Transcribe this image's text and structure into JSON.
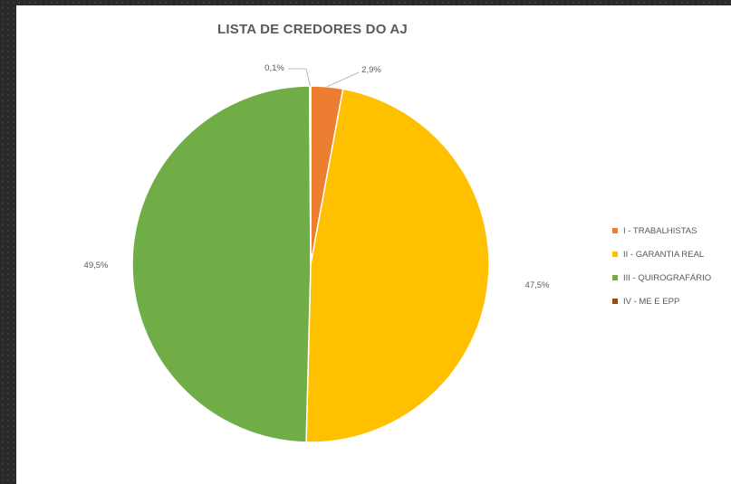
{
  "chart_data": {
    "type": "pie",
    "title": "LISTA DE CREDORES DO AJ",
    "categories": [
      "I - TRABALHISTAS",
      "II - GARANTIA REAL",
      "III - QUIROGRAFÁRIO",
      "IV - ME E EPP"
    ],
    "values": [
      2.9,
      47.5,
      49.5,
      0.1
    ],
    "data_labels": [
      "2,9%",
      "47,5%",
      "49,5%",
      "0,1%"
    ],
    "colors": [
      "#ED7D31",
      "#FFC000",
      "#70AD47",
      "#9E480E"
    ],
    "legend_position": "right"
  }
}
